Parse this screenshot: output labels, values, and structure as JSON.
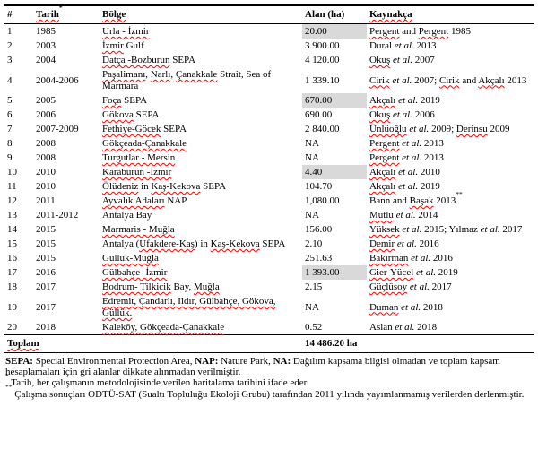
{
  "colors": {
    "highlight": "#d9d9d9",
    "spellcheck_underline": "#ff0000"
  },
  "table": {
    "header": {
      "num": "#",
      "tarih": "<u>Tarih</u><sup>*</sup>",
      "bolge": "<u>Bölge</u>",
      "alan": "Alan (ha)",
      "kaynakca": "<u>Kaynakça</u>"
    },
    "rows": [
      {
        "num": "1",
        "tarih": "1985",
        "bolge": "<u>Urla - İzmir</u>",
        "alan": "20.00",
        "highlight": true,
        "kaynakca": "<u>Pergent</u> and <u>Pergent</u> 1985"
      },
      {
        "num": "2",
        "tarih": "2003",
        "bolge": "<u>İzmir</u> Gulf",
        "alan": "3 900.00",
        "highlight": false,
        "kaynakca": "Dural <i>et al.</i> 2013"
      },
      {
        "num": "3",
        "tarih": "2004",
        "bolge": "<u>Datça -Bozburun</u> SEPA",
        "alan": "4 120.00",
        "highlight": false,
        "kaynakca": "<u>Okuş</u> <i>et al.</i> 2007"
      },
      {
        "num": "4",
        "tarih": "2004-2006",
        "bolge": "<u>Paşalimanı</u>, <u>Narlı</u>, <u>Çanakkale</u> Strait, Sea of Marmara",
        "alan": "1 339.10",
        "highlight": false,
        "kaynakca": "<u>Cirik</u> <i>et al.</i> 2007; <u>Cirik</u> and <u>Akçalı</u> 2013"
      },
      {
        "num": "5",
        "tarih": "2005",
        "bolge": "<u>Foça</u> SEPA",
        "alan": "670.00",
        "highlight": true,
        "kaynakca": "<u>Akçalı</u> <i>et al.</i> 2019"
      },
      {
        "num": "6",
        "tarih": "2006",
        "bolge": "<u>Gökova</u> SEPA",
        "alan": "690.00",
        "highlight": false,
        "kaynakca": "<u>Okuş</u> <i>et al.</i> 2006"
      },
      {
        "num": "7",
        "tarih": "2007-2009",
        "bolge": "<u>Fethiye-Göcek</u> SEPA",
        "alan": "2 840.00",
        "highlight": false,
        "kaynakca": "<u>Ünlüoğlu</u> <i>et al.</i> 2009; <u>Derinsu</u> 2009"
      },
      {
        "num": "8",
        "tarih": "2008",
        "bolge": "<u>Gökçeada-Çanakkale</u>",
        "alan": "NA",
        "highlight": false,
        "kaynakca": "<u>Pergent</u> <i>et al.</i> 2013"
      },
      {
        "num": "9",
        "tarih": "2008",
        "bolge": "<u>Turgutlar - Mersin</u>",
        "alan": "NA",
        "highlight": false,
        "kaynakca": "<u>Pergent</u> <i>et al.</i> 2013"
      },
      {
        "num": "10",
        "tarih": "2010",
        "bolge": "<u>Karaburun -İzmir</u>",
        "alan": "4.40",
        "highlight": true,
        "kaynakca": "<u>Akçalı</u> <i>et al.</i> 2010"
      },
      {
        "num": "11",
        "tarih": "2010",
        "bolge": "<u>Ölüdeniz</u> in <u>Kaş-Kekova</u> SEPA",
        "alan": "104.70",
        "highlight": false,
        "kaynakca": "<u>Akçalı</u> <i>et al.</i> 2019"
      },
      {
        "num": "12",
        "tarih": "2011",
        "bolge": "<u>Ayvalık Adaları</u> NAP",
        "alan": "1,080.00",
        "highlight": false,
        "kaynakca": "Bann and <u>Başak</u> 2013<sup>**</sup>"
      },
      {
        "num": "13",
        "tarih": "2011-2012",
        "bolge": "Antalya Bay",
        "alan": "NA",
        "highlight": false,
        "kaynakca": "<u>Mutlu</u> <i>et al.</i> 2014"
      },
      {
        "num": "14",
        "tarih": "2015",
        "bolge": "<u>Marmaris - Muğla</u>",
        "alan": "156.00",
        "highlight": false,
        "kaynakca": "<u>Yüksek</u> <i>et al.</i> 2015; Yılmaz <i>et al.</i> 2017"
      },
      {
        "num": "15",
        "tarih": "2015",
        "bolge": "Antalya (<u>Ufakdere-Kaş</u>) in <u>Kaş-Kekova</u> SEPA",
        "alan": "2.10",
        "highlight": false,
        "kaynakca": "<u>Demir</u> <i>et al.</i> 2016"
      },
      {
        "num": "16",
        "tarih": "2015",
        "bolge": "<u>Güllük-Muğla</u>",
        "alan": "251.63",
        "highlight": false,
        "kaynakca": "<u>Bakırman</u> <i>et al.</i> 2016"
      },
      {
        "num": "17",
        "tarih": "2016",
        "bolge": "<u>Gülbahçe -İzmir</u>",
        "alan": "1 393.00",
        "highlight": true,
        "kaynakca": "<u>Gier-Yücel</u> <i>et al.</i> 2019"
      },
      {
        "num": "18",
        "tarih": "2017",
        "bolge": "<u>Bodrum- Tilkicik</u> Bay, <u>Muğla</u>",
        "alan": "2.15",
        "highlight": false,
        "kaynakca": "<u>Güçlüsoy</u> <i>et al.</i> 2017"
      },
      {
        "num": "19",
        "tarih": "2017",
        "bolge": "<u>Edremit, Çandarlı, Ildır, Gülbahçe, Gökova, Güllük.</u>",
        "alan": "NA",
        "highlight": false,
        "kaynakca": "<u>Duman</u> <i>et al.</i> 2018"
      },
      {
        "num": "20",
        "tarih": "2018",
        "bolge": "<u>Kaleköy, Gökçeada-Çanakkale</u>",
        "alan": "0.52",
        "highlight": false,
        "kaynakca": "Aslan <i>et al.</i> 2018"
      }
    ],
    "total": {
      "label": "<u>Toplam</u>",
      "value": "14 486.20 ha"
    }
  },
  "footnotes": [
    "<b>SEPA:</b> Special Environmental Protection Area, <b>NAP:</b> Nature Park, <b>NA:</b> Dağılım kapsama bilgisi olmadan ve toplam kapsam hesaplamaları için gri alanlar dikkate alınmadan verilmiştir.",
    "<sup>*</sup> Tarih, her çalışmanın metodolojisinde verilen haritalama tarihini ifade eder.",
    "<sup>**</sup> Çalışma sonuçları ODTÜ-SAT (Sualtı Topluluğu Ekoloji Grubu) tarafından 2011 yılında yayımlanmamış verilerden derlenmiştir."
  ]
}
